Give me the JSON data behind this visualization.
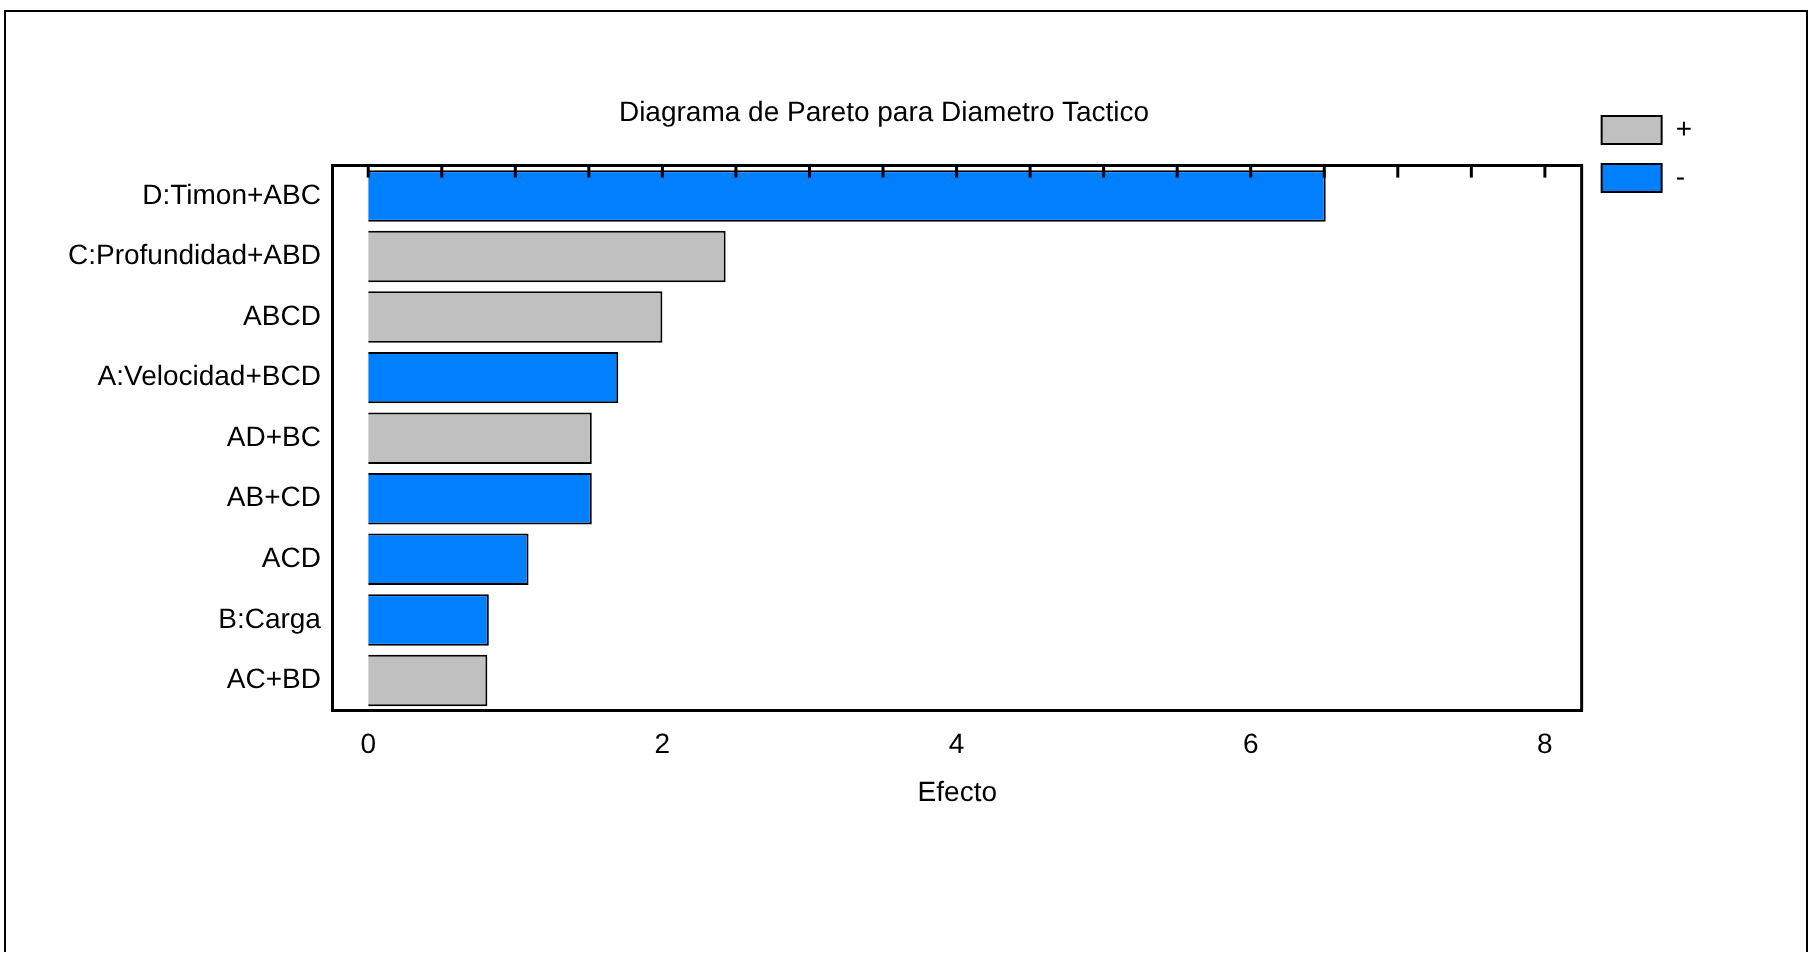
{
  "chart_data": {
    "type": "bar",
    "orientation": "horizontal",
    "stacked": true,
    "title": "Diagrama de Pareto para Diametro Tactico",
    "xlabel": "Efecto",
    "categories": [
      "D:Timon+ABC",
      "C:Profundidad+ABD",
      "ABCD",
      "A:Velocidad+BCD",
      "AD+BC",
      "AB+CD",
      "ACD",
      "B:Carga",
      "AC+BD"
    ],
    "series": [
      {
        "name": "+",
        "color": "#c0c0c0",
        "values": [
          null,
          2.43,
          2.0,
          null,
          1.52,
          null,
          null,
          null,
          0.81
        ]
      },
      {
        "name": "-",
        "color": "#0080ff",
        "values": [
          6.51,
          null,
          null,
          1.7,
          null,
          1.52,
          1.09,
          0.82,
          null
        ]
      }
    ],
    "xlim": [
      -0.24,
      8.25
    ],
    "xticks": [
      0,
      {
        "value": 0.5,
        "label": null
      },
      {
        "value": 1,
        "label": null
      },
      {
        "value": 1.5,
        "label": null
      },
      2,
      {
        "value": 2.5,
        "label": null
      },
      {
        "value": 3,
        "label": null
      },
      {
        "value": 3.5,
        "label": null
      },
      4,
      {
        "value": 4.5,
        "label": null
      },
      {
        "value": 5,
        "label": null
      },
      {
        "value": 5.5,
        "label": null
      },
      6,
      {
        "value": 6.5,
        "label": null
      },
      {
        "value": 7,
        "label": null
      },
      {
        "value": 7.5,
        "label": null
      },
      8
    ],
    "grid": false,
    "legend": "top right"
  }
}
